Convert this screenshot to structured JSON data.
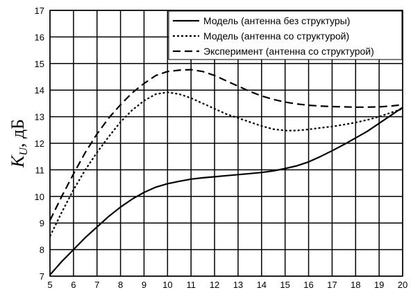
{
  "chart_data": {
    "type": "line",
    "xlabel": "",
    "ylabel": {
      "symbol": "K",
      "subscript": "U",
      "unit": ", дБ"
    },
    "xlim": [
      5,
      20
    ],
    "ylim": [
      7,
      17
    ],
    "x_ticks": [
      5,
      6,
      7,
      8,
      9,
      10,
      11,
      12,
      13,
      14,
      15,
      16,
      17,
      18,
      19,
      20
    ],
    "y_ticks": [
      7,
      8,
      9,
      10,
      11,
      12,
      13,
      14,
      15,
      16,
      17
    ],
    "grid": true,
    "legend_position": "top-right",
    "series": [
      {
        "name": "Модель (антенна без структуры)",
        "style": "solid",
        "color": "#000000",
        "x": [
          5,
          5.5,
          6,
          6.5,
          7,
          7.5,
          8,
          8.5,
          9,
          9.5,
          10,
          10.5,
          11,
          11.5,
          12,
          12.5,
          13,
          13.5,
          14,
          14.5,
          15,
          15.5,
          16,
          16.5,
          17,
          17.5,
          18,
          18.5,
          19,
          19.5,
          20
        ],
        "y": [
          7.05,
          7.55,
          8.0,
          8.45,
          8.85,
          9.25,
          9.6,
          9.9,
          10.15,
          10.35,
          10.48,
          10.57,
          10.65,
          10.7,
          10.74,
          10.78,
          10.82,
          10.86,
          10.9,
          10.96,
          11.05,
          11.15,
          11.3,
          11.5,
          11.72,
          11.95,
          12.2,
          12.45,
          12.75,
          13.05,
          13.35
        ]
      },
      {
        "name": "Модель (антенна со структурой)",
        "style": "dotted",
        "color": "#000000",
        "x": [
          5,
          5.5,
          6,
          6.5,
          7,
          7.5,
          8,
          8.5,
          9,
          9.5,
          10,
          10.5,
          11,
          11.5,
          12,
          12.5,
          13,
          13.5,
          14,
          14.5,
          15,
          15.5,
          16,
          16.5,
          17,
          17.5,
          18,
          18.5,
          19,
          19.5,
          20
        ],
        "y": [
          8.5,
          9.4,
          10.25,
          11.0,
          11.65,
          12.25,
          12.8,
          13.25,
          13.6,
          13.85,
          13.92,
          13.85,
          13.7,
          13.5,
          13.3,
          13.1,
          12.95,
          12.8,
          12.65,
          12.53,
          12.48,
          12.48,
          12.52,
          12.58,
          12.63,
          12.7,
          12.78,
          12.88,
          13.0,
          13.15,
          13.3
        ]
      },
      {
        "name": "Эксперимент (антенна со структурой)",
        "style": "dashed",
        "color": "#000000",
        "x": [
          5,
          5.5,
          6,
          6.5,
          7,
          7.5,
          8,
          8.5,
          9,
          9.5,
          10,
          10.5,
          11,
          11.5,
          12,
          12.5,
          13,
          13.5,
          14,
          14.5,
          15,
          15.5,
          16,
          16.5,
          17,
          17.5,
          18,
          18.5,
          19,
          19.5,
          20
        ],
        "y": [
          9.1,
          10.0,
          10.85,
          11.65,
          12.35,
          12.95,
          13.45,
          13.9,
          14.25,
          14.55,
          14.7,
          14.75,
          14.77,
          14.7,
          14.55,
          14.35,
          14.15,
          13.95,
          13.78,
          13.65,
          13.55,
          13.48,
          13.43,
          13.4,
          13.38,
          13.37,
          13.36,
          13.36,
          13.37,
          13.4,
          13.45
        ]
      }
    ]
  }
}
